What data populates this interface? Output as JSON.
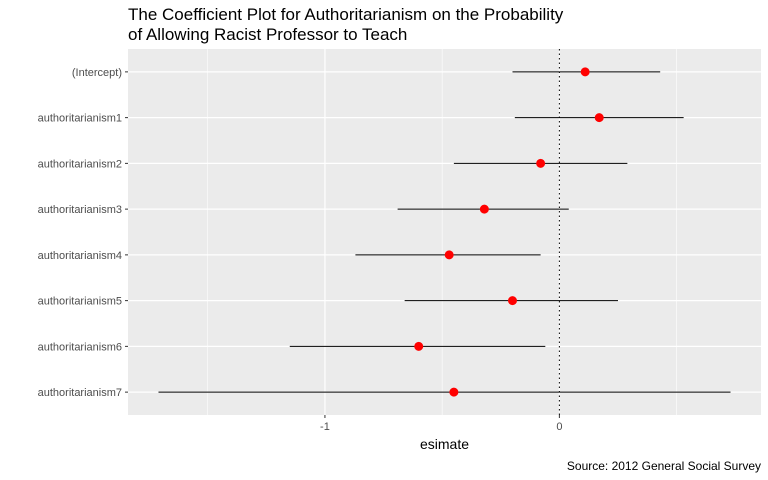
{
  "chart_data": {
    "type": "scatter",
    "subtype": "coefficient-plot",
    "title_lines": [
      "The Coefficient Plot for Authoritarianism on the Probability",
      "of Allowing Racist Professor to Teach"
    ],
    "xlabel": "esimate",
    "ylabel": "",
    "caption": "Source: 2012 General Social Survey",
    "categories": [
      "(Intercept)",
      "authoritarianism1",
      "authoritarianism2",
      "authoritarianism3",
      "authoritarianism4",
      "authoritarianism5",
      "authoritarianism6",
      "authoritarianism7"
    ],
    "estimates": [
      0.11,
      0.17,
      -0.08,
      -0.32,
      -0.47,
      -0.2,
      -0.6,
      -0.45
    ],
    "ci_lower": [
      -0.2,
      -0.19,
      -0.45,
      -0.69,
      -0.87,
      -0.66,
      -1.15,
      -1.71
    ],
    "ci_upper": [
      0.43,
      0.53,
      0.29,
      0.04,
      -0.08,
      0.25,
      -0.06,
      0.73
    ],
    "xlim": [
      -1.84,
      0.86
    ],
    "x_ticks": [
      -1,
      0
    ],
    "x_tick_labels": [
      "-1",
      "0"
    ],
    "x_minor_ticks": [
      -1.5,
      -0.5,
      0.5
    ],
    "reference_line": 0,
    "grid": true,
    "point_color": "#ff0000",
    "panel_color": "#ebebeb"
  }
}
